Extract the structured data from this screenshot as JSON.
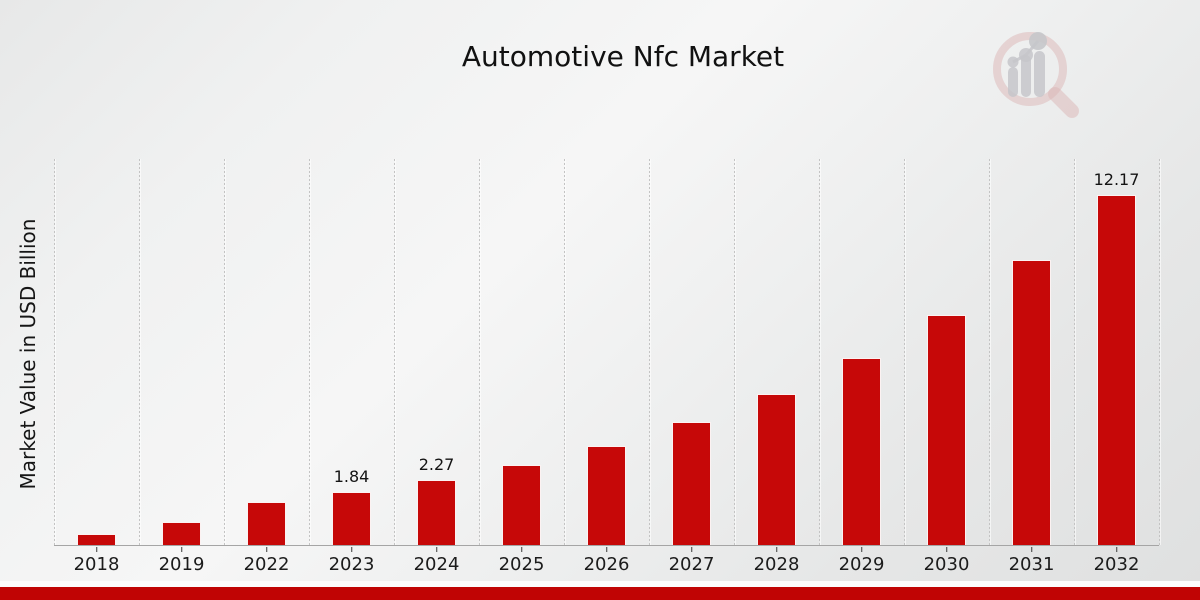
{
  "chart_data": {
    "type": "bar",
    "title": "Automotive Nfc Market",
    "xlabel": "",
    "ylabel": "Market Value in USD Billion",
    "categories": [
      "2018",
      "2019",
      "2022",
      "2023",
      "2024",
      "2025",
      "2026",
      "2027",
      "2028",
      "2029",
      "2030",
      "2031",
      "2032"
    ],
    "values": [
      0.37,
      0.8,
      1.49,
      1.84,
      2.27,
      2.8,
      3.46,
      4.27,
      5.26,
      6.51,
      8.01,
      9.92,
      12.17
    ],
    "bar_labels": [
      "",
      "",
      "",
      "1.84",
      "2.27",
      "",
      "",
      "",
      "",
      "",
      "",
      "",
      "12.17"
    ],
    "ylim": [
      0,
      13.5
    ],
    "grid": "vertical dotted lines between categories",
    "legend": "none",
    "bar_color": "#c60808"
  },
  "footer": {
    "accent_color": "#c00404"
  },
  "branding": {
    "logo": "magnifier-bar-chart-watermark"
  }
}
